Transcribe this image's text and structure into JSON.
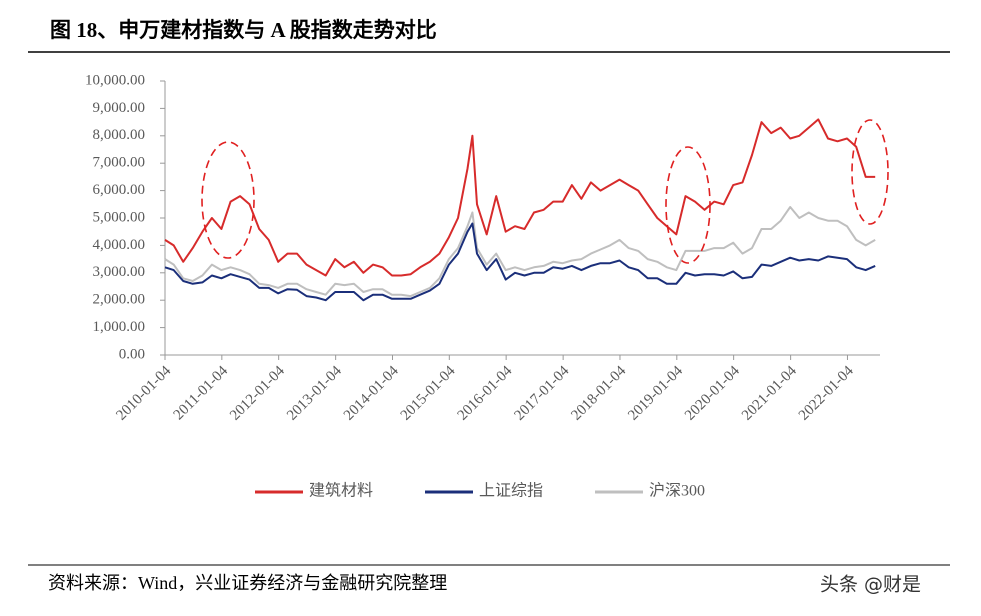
{
  "header": {
    "title": "图 18、申万建材指数与 A 股指数走势对比"
  },
  "chart_data": {
    "type": "line",
    "x": [
      "2010-01-04",
      "2010-03-01",
      "2010-05-01",
      "2010-07-01",
      "2010-09-01",
      "2010-11-01",
      "2011-01-01",
      "2011-03-01",
      "2011-05-01",
      "2011-07-01",
      "2011-09-01",
      "2011-11-01",
      "2012-01-01",
      "2012-03-01",
      "2012-05-01",
      "2012-07-01",
      "2012-09-01",
      "2012-11-01",
      "2013-01-01",
      "2013-03-01",
      "2013-05-01",
      "2013-07-01",
      "2013-09-01",
      "2013-11-01",
      "2014-01-01",
      "2014-03-01",
      "2014-05-01",
      "2014-07-01",
      "2014-09-01",
      "2014-11-01",
      "2015-01-01",
      "2015-03-01",
      "2015-05-01",
      "2015-06-01",
      "2015-07-01",
      "2015-09-01",
      "2015-11-01",
      "2016-01-01",
      "2016-03-01",
      "2016-05-01",
      "2016-07-01",
      "2016-09-01",
      "2016-11-01",
      "2017-01-01",
      "2017-03-01",
      "2017-05-01",
      "2017-07-01",
      "2017-09-01",
      "2017-11-01",
      "2018-01-01",
      "2018-03-01",
      "2018-05-01",
      "2018-07-01",
      "2018-09-01",
      "2018-11-01",
      "2019-01-01",
      "2019-03-01",
      "2019-05-01",
      "2019-07-01",
      "2019-09-01",
      "2019-11-01",
      "2020-01-01",
      "2020-03-01",
      "2020-05-01",
      "2020-07-01",
      "2020-09-01",
      "2020-11-01",
      "2021-01-01",
      "2021-03-01",
      "2021-05-01",
      "2021-07-01",
      "2021-09-01",
      "2021-11-01",
      "2022-01-01",
      "2022-03-01",
      "2022-05-01",
      "2022-07-01"
    ],
    "series": [
      {
        "name": "建筑材料",
        "color": "#d72b2b",
        "values": [
          4200,
          4000,
          3400,
          3900,
          4500,
          5000,
          4600,
          5600,
          5800,
          5500,
          4600,
          4200,
          3400,
          3700,
          3700,
          3300,
          3100,
          2900,
          3500,
          3200,
          3400,
          3000,
          3300,
          3200,
          2900,
          2900,
          2950,
          3200,
          3400,
          3700,
          4300,
          5000,
          6800,
          8000,
          5500,
          4400,
          5800,
          4500,
          4700,
          4600,
          5200,
          5300,
          5600,
          5600,
          6200,
          5700,
          6300,
          6000,
          6200,
          6400,
          6200,
          6000,
          5500,
          5000,
          4700,
          4400,
          5800,
          5600,
          5300,
          5600,
          5500,
          6200,
          6300,
          7300,
          8500,
          8100,
          8300,
          7900,
          8000,
          8300,
          8600,
          7900,
          7800,
          7900,
          7600,
          6500,
          6500
        ]
      },
      {
        "name": "上证综指",
        "color": "#1b2f7a",
        "values": [
          3200,
          3100,
          2700,
          2600,
          2650,
          2900,
          2800,
          2950,
          2850,
          2750,
          2450,
          2450,
          2250,
          2400,
          2380,
          2150,
          2100,
          2000,
          2300,
          2300,
          2300,
          2000,
          2200,
          2200,
          2050,
          2050,
          2050,
          2200,
          2350,
          2600,
          3300,
          3700,
          4500,
          4800,
          3700,
          3100,
          3500,
          2750,
          3000,
          2900,
          3000,
          3000,
          3200,
          3150,
          3250,
          3100,
          3250,
          3350,
          3350,
          3450,
          3200,
          3100,
          2800,
          2800,
          2600,
          2600,
          3000,
          2900,
          2950,
          2950,
          2900,
          3050,
          2800,
          2850,
          3300,
          3250,
          3400,
          3550,
          3450,
          3500,
          3450,
          3600,
          3550,
          3500,
          3200,
          3100,
          3250
        ]
      },
      {
        "name": "沪深300",
        "color": "#bfbfbf",
        "values": [
          3500,
          3300,
          2800,
          2700,
          2900,
          3300,
          3100,
          3200,
          3100,
          2950,
          2600,
          2550,
          2450,
          2600,
          2600,
          2400,
          2300,
          2200,
          2600,
          2550,
          2600,
          2300,
          2400,
          2400,
          2200,
          2200,
          2150,
          2300,
          2450,
          2800,
          3500,
          3900,
          4700,
          5200,
          3900,
          3300,
          3700,
          3100,
          3200,
          3100,
          3200,
          3250,
          3400,
          3350,
          3450,
          3500,
          3700,
          3850,
          4000,
          4200,
          3900,
          3800,
          3500,
          3400,
          3200,
          3100,
          3800,
          3800,
          3800,
          3900,
          3900,
          4100,
          3700,
          3900,
          4600,
          4600,
          4900,
          5400,
          5000,
          5200,
          5000,
          4900,
          4900,
          4700,
          4200,
          4000,
          4200
        ]
      }
    ],
    "xlim": [
      "2010-01-04",
      "2022-08-01"
    ],
    "xticks": [
      "2010-01-04",
      "2011-01-04",
      "2012-01-04",
      "2013-01-04",
      "2014-01-04",
      "2015-01-04",
      "2016-01-04",
      "2017-01-04",
      "2018-01-04",
      "2019-01-04",
      "2020-01-04",
      "2021-01-04",
      "2022-01-04"
    ],
    "ylim": [
      0,
      10000
    ],
    "yticks": [
      {
        "value": 0,
        "label": "0.00"
      },
      {
        "value": 1000,
        "label": "1,000.00"
      },
      {
        "value": 2000,
        "label": "2,000.00"
      },
      {
        "value": 3000,
        "label": "3,000.00"
      },
      {
        "value": 4000,
        "label": "4,000.00"
      },
      {
        "value": 5000,
        "label": "5,000.00"
      },
      {
        "value": 6000,
        "label": "6,000.00"
      },
      {
        "value": 7000,
        "label": "7,000.00"
      },
      {
        "value": 8000,
        "label": "8,000.00"
      },
      {
        "value": 9000,
        "label": "9,000.00"
      },
      {
        "value": 10000,
        "label": "10,000.00"
      }
    ],
    "grid": false
  },
  "footer": {
    "source": "资料来源：Wind，兴业证券经济与金融研究院整理",
    "watermark": "头条 @财是"
  }
}
